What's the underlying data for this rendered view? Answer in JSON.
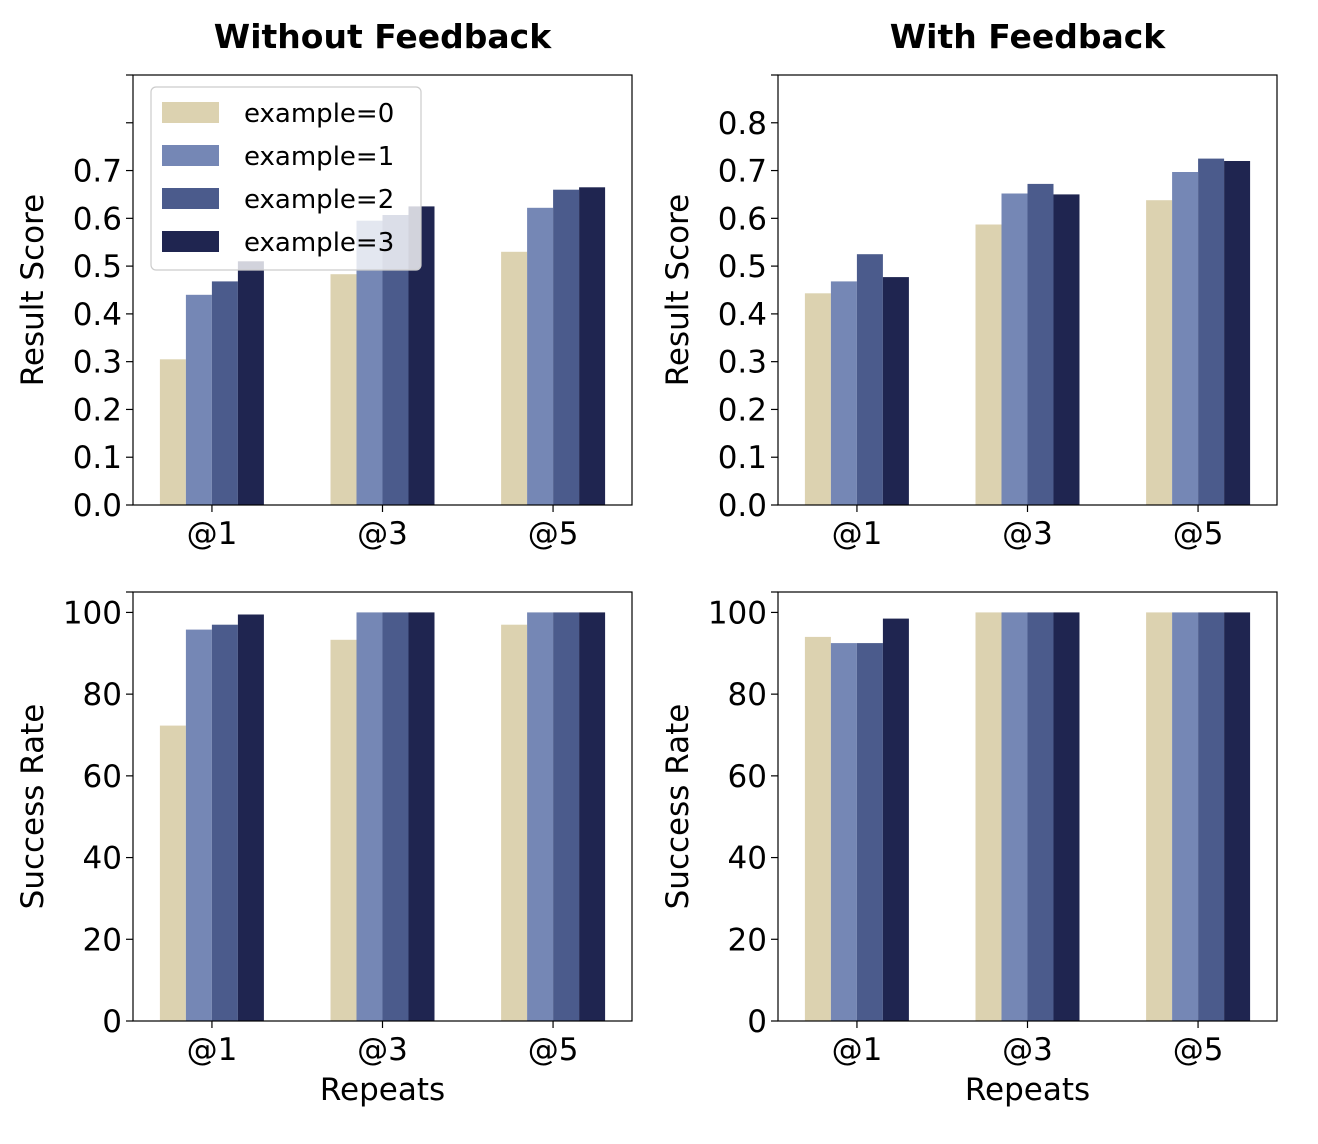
{
  "chart_data": [
    {
      "id": "rs-without",
      "type": "bar",
      "title": "Without Feedback",
      "xlabel": "",
      "ylabel": "Result Score",
      "categories": [
        "@1",
        "@3",
        "@5"
      ],
      "ylim": [
        0,
        0.9
      ],
      "yticks": [
        0.0,
        0.1,
        0.2,
        0.3,
        0.4,
        0.5,
        0.6,
        0.7
      ],
      "ytick_labels": [
        "0.0",
        "0.1",
        "0.2",
        "0.3",
        "0.4",
        "0.5",
        "0.6",
        "0.7"
      ],
      "extra_minor_ticks": [
        0.8
      ],
      "legend": "top-left",
      "series": [
        {
          "name": "example=0",
          "values": [
            0.305,
            0.483,
            0.53
          ]
        },
        {
          "name": "example=1",
          "values": [
            0.44,
            0.595,
            0.622
          ]
        },
        {
          "name": "example=2",
          "values": [
            0.468,
            0.607,
            0.66
          ]
        },
        {
          "name": "example=3",
          "values": [
            0.51,
            0.625,
            0.665
          ]
        }
      ]
    },
    {
      "id": "rs-with",
      "type": "bar",
      "title": "With Feedback",
      "xlabel": "",
      "ylabel": "Result Score",
      "categories": [
        "@1",
        "@3",
        "@5"
      ],
      "ylim": [
        0,
        0.9
      ],
      "yticks": [
        0.0,
        0.1,
        0.2,
        0.3,
        0.4,
        0.5,
        0.6,
        0.7,
        0.8
      ],
      "ytick_labels": [
        "0.0",
        "0.1",
        "0.2",
        "0.3",
        "0.4",
        "0.5",
        "0.6",
        "0.7",
        "0.8"
      ],
      "extra_minor_ticks": [],
      "legend": "none",
      "series": [
        {
          "name": "example=0",
          "values": [
            0.443,
            0.587,
            0.638
          ]
        },
        {
          "name": "example=1",
          "values": [
            0.468,
            0.652,
            0.697
          ]
        },
        {
          "name": "example=2",
          "values": [
            0.525,
            0.672,
            0.725
          ]
        },
        {
          "name": "example=3",
          "values": [
            0.477,
            0.65,
            0.72
          ]
        }
      ]
    },
    {
      "id": "sr-without",
      "type": "bar",
      "title": "",
      "xlabel": "Repeats",
      "ylabel": "Success Rate",
      "categories": [
        "@1",
        "@3",
        "@5"
      ],
      "ylim": [
        0,
        105
      ],
      "yticks": [
        0,
        20,
        40,
        60,
        80,
        100
      ],
      "ytick_labels": [
        "0",
        "20",
        "40",
        "60",
        "80",
        "100"
      ],
      "extra_minor_ticks": [],
      "legend": "none",
      "series": [
        {
          "name": "example=0",
          "values": [
            72.3,
            93.3,
            97.0
          ]
        },
        {
          "name": "example=1",
          "values": [
            95.8,
            100,
            100
          ]
        },
        {
          "name": "example=2",
          "values": [
            97.0,
            100,
            100
          ]
        },
        {
          "name": "example=3",
          "values": [
            99.5,
            100,
            100
          ]
        }
      ]
    },
    {
      "id": "sr-with",
      "type": "bar",
      "title": "",
      "xlabel": "Repeats",
      "ylabel": "Success Rate",
      "categories": [
        "@1",
        "@3",
        "@5"
      ],
      "ylim": [
        0,
        105
      ],
      "yticks": [
        0,
        20,
        40,
        60,
        80,
        100
      ],
      "ytick_labels": [
        "0",
        "20",
        "40",
        "60",
        "80",
        "100"
      ],
      "extra_minor_ticks": [],
      "legend": "none",
      "series": [
        {
          "name": "example=0",
          "values": [
            94.0,
            100,
            100
          ]
        },
        {
          "name": "example=1",
          "values": [
            92.5,
            100,
            100
          ]
        },
        {
          "name": "example=2",
          "values": [
            92.5,
            100,
            100
          ]
        },
        {
          "name": "example=3",
          "values": [
            98.5,
            100,
            100
          ]
        }
      ]
    }
  ],
  "series_colors": [
    "#dcd2b0",
    "#7587b5",
    "#4b5b8c",
    "#1f2550"
  ]
}
